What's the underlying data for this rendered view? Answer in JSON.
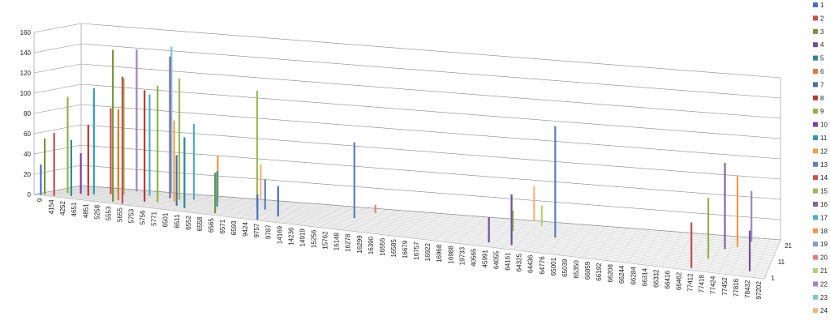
{
  "chart_data": {
    "type": "bar",
    "subtype": "3d-column",
    "title": "",
    "xlabel": "",
    "ylabel": "",
    "ylim": [
      0,
      160
    ],
    "yticks": [
      0,
      20,
      40,
      60,
      80,
      100,
      120,
      140,
      160
    ],
    "grid": true,
    "legend_position": "right",
    "depth_ticks": [
      "1",
      "11",
      "21"
    ],
    "categories": [
      "9",
      "4154",
      "4252",
      "4651",
      "4851",
      "5258",
      "5553",
      "5655",
      "5753",
      "5756",
      "5771",
      "6501",
      "6511",
      "6552",
      "6558",
      "6565",
      "6571",
      "6593",
      "9424",
      "9757",
      "9787",
      "14169",
      "14236",
      "14919",
      "15256",
      "15762",
      "16148",
      "16278",
      "16299",
      "16390",
      "16555",
      "16585",
      "16679",
      "16757",
      "16922",
      "16968",
      "16988",
      "19733",
      "40565",
      "45991",
      "64055",
      "64161",
      "64325",
      "64436",
      "64776",
      "65001",
      "65039",
      "65350",
      "66059",
      "66192",
      "66208",
      "66244",
      "66284",
      "66314",
      "66332",
      "66416",
      "66462",
      "77412",
      "77418",
      "77424",
      "77452",
      "77816",
      "78432",
      "97202"
    ],
    "series_names": [
      "1",
      "2",
      "3",
      "4",
      "5",
      "6",
      "7",
      "8",
      "9",
      "10",
      "11",
      "12",
      "13",
      "14",
      "15",
      "16",
      "17",
      "18",
      "19",
      "20",
      "21",
      "22",
      "23",
      "24"
    ],
    "series_colors": [
      "#4472C4",
      "#C0504D",
      "#77933C",
      "#6F4E99",
      "#31859C",
      "#E07B39",
      "#4B6FA8",
      "#B03A37",
      "#8DB33F",
      "#7B3FA8",
      "#2E9AB4",
      "#F0A04A",
      "#5A7EC0",
      "#C85050",
      "#9BBB59",
      "#8064A2",
      "#4BACC6",
      "#F79646",
      "#7F9BD0",
      "#D98080",
      "#B4D07A",
      "#9F86C0",
      "#7FC4D6",
      "#FAB27B"
    ],
    "estimated_bars": [
      {
        "cat": "9",
        "series": "3",
        "value": 55
      },
      {
        "cat": "9",
        "series": "1",
        "value": 30
      },
      {
        "cat": "4154",
        "series": "2",
        "value": 62
      },
      {
        "cat": "4154",
        "series": "9",
        "value": 95
      },
      {
        "cat": "4252",
        "series": "10",
        "value": 40
      },
      {
        "cat": "4252",
        "series": "5",
        "value": 55
      },
      {
        "cat": "4651",
        "series": "8",
        "value": 70
      },
      {
        "cat": "4651",
        "series": "11",
        "value": 105
      },
      {
        "cat": "4851",
        "series": "14",
        "value": 85
      },
      {
        "cat": "4851",
        "series": "18",
        "value": 60
      },
      {
        "cat": "5258",
        "series": "15",
        "value": 115
      },
      {
        "cat": "5258",
        "series": "22",
        "value": 140
      },
      {
        "cat": "5553",
        "series": "3",
        "value": 150
      },
      {
        "cat": "5553",
        "series": "6",
        "value": 90
      },
      {
        "cat": "5655",
        "series": "2",
        "value": 125
      },
      {
        "cat": "5655",
        "series": "17",
        "value": 100
      },
      {
        "cat": "5753",
        "series": "23",
        "value": 145
      },
      {
        "cat": "5753",
        "series": "8",
        "value": 110
      },
      {
        "cat": "5756",
        "series": "16",
        "value": 140
      },
      {
        "cat": "5756",
        "series": "9",
        "value": 115
      },
      {
        "cat": "5771",
        "series": "15",
        "value": 120
      },
      {
        "cat": "5771",
        "series": "12",
        "value": 80
      },
      {
        "cat": "6501",
        "series": "17",
        "value": 75
      },
      {
        "cat": "6501",
        "series": "7",
        "value": 50
      },
      {
        "cat": "6511",
        "series": "5",
        "value": 70
      },
      {
        "cat": "6552",
        "series": "18",
        "value": 45
      },
      {
        "cat": "6558",
        "series": "11",
        "value": 35
      },
      {
        "cat": "6565",
        "series": "3",
        "value": 40
      },
      {
        "cat": "6571",
        "series": "24",
        "value": 35
      },
      {
        "cat": "6593",
        "series": "15",
        "value": 115
      },
      {
        "cat": "9424",
        "series": "13",
        "value": 30
      },
      {
        "cat": "9757",
        "series": "1",
        "value": 25
      },
      {
        "cat": "9787",
        "series": "7",
        "value": 30
      },
      {
        "cat": "16148",
        "series": "13",
        "value": 75
      },
      {
        "cat": "16278",
        "series": "20",
        "value": 8
      },
      {
        "cat": "45991",
        "series": "4",
        "value": 25
      },
      {
        "cat": "64055",
        "series": "15",
        "value": 20
      },
      {
        "cat": "64161",
        "series": "4",
        "value": 50
      },
      {
        "cat": "64161",
        "series": "24",
        "value": 35
      },
      {
        "cat": "64325",
        "series": "21",
        "value": 20
      },
      {
        "cat": "64776",
        "series": "13",
        "value": 110
      },
      {
        "cat": "77412",
        "series": "2",
        "value": 45
      },
      {
        "cat": "77418",
        "series": "9",
        "value": 60
      },
      {
        "cat": "77424",
        "series": "16",
        "value": 85
      },
      {
        "cat": "77452",
        "series": "18",
        "value": 70
      },
      {
        "cat": "77816",
        "series": "22",
        "value": 50
      },
      {
        "cat": "78432",
        "series": "4",
        "value": 40
      }
    ]
  }
}
